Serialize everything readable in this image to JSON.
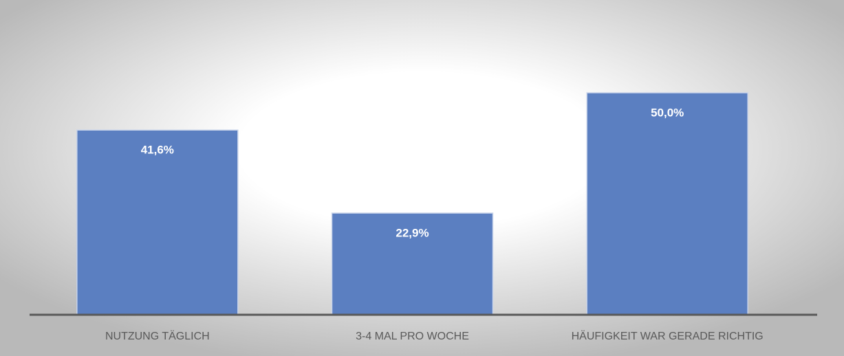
{
  "chart_data": {
    "type": "bar",
    "categories": [
      "NUTZUNG TÄGLICH",
      "3-4 MAL PRO WOCHE",
      "HÄUFIGKEIT WAR GERADE RICHTIG"
    ],
    "values": [
      41.6,
      22.9,
      50.0
    ],
    "value_labels": [
      "41,6%",
      "22,9%",
      "50,0%"
    ],
    "color": "#5b7fc1"
  }
}
